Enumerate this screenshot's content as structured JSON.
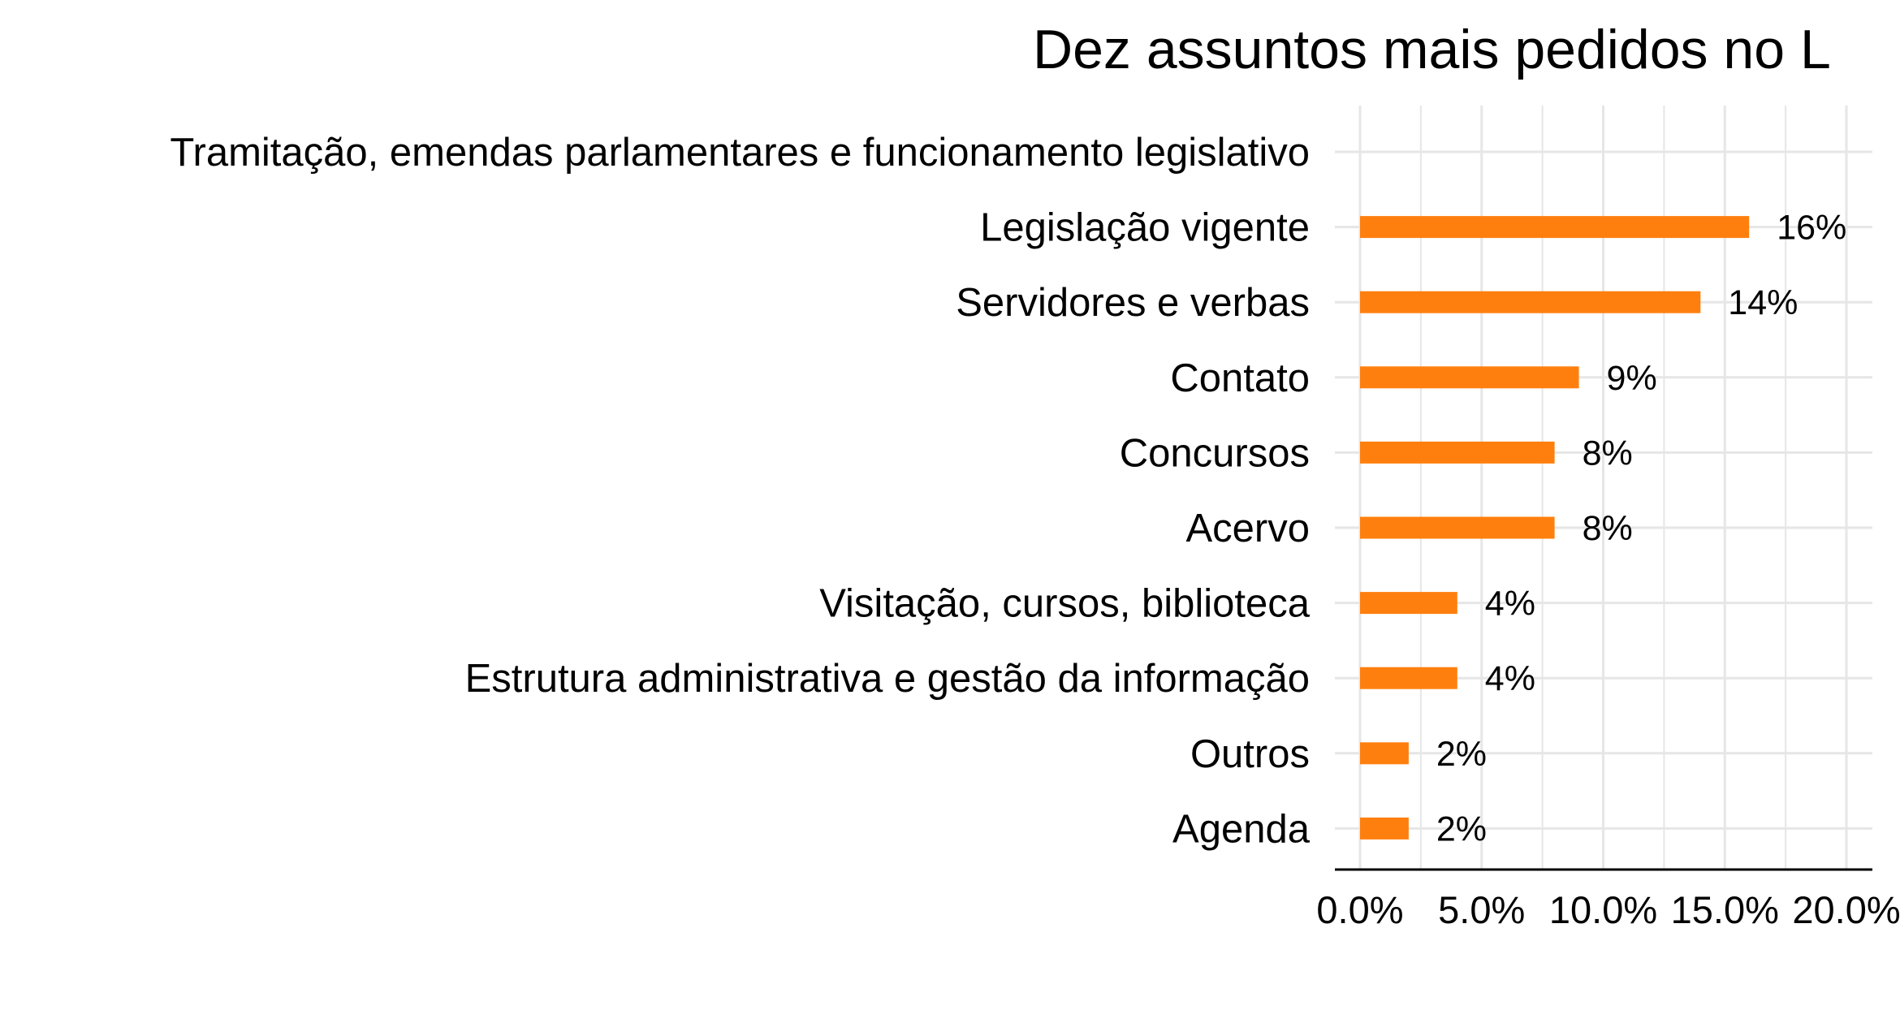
{
  "chart_data": {
    "type": "bar",
    "orientation": "horizontal",
    "title": "Dez assuntos mais pedidos no L",
    "categories": [
      "Tramitação, emendas parlamentares e funcionamento legislativo",
      "Legislação vigente",
      "Servidores e verbas",
      "Contato",
      "Concursos",
      "Acervo",
      "Visitação, cursos, biblioteca",
      "Estrutura administrativa e gestão da informação",
      "Outros",
      "Agenda"
    ],
    "values": [
      null,
      16,
      14,
      9,
      8,
      8,
      4,
      4,
      2,
      2
    ],
    "data_labels": [
      "",
      "16%",
      "14%",
      "9%",
      "8%",
      "8%",
      "4%",
      "4%",
      "2%",
      "2%"
    ],
    "x_ticks": [
      0,
      5,
      10,
      15,
      20
    ],
    "x_tick_labels": [
      "0.0%",
      "5.0%",
      "10.0%",
      "15.0%",
      "20.0%"
    ],
    "xlim": [
      0,
      20
    ],
    "xlabel": "",
    "ylabel": "",
    "grid": true,
    "colors": {
      "bar": "#FF7F0E",
      "grid": "#E6E6E6",
      "axis": "#000000",
      "text": "#000000"
    }
  }
}
